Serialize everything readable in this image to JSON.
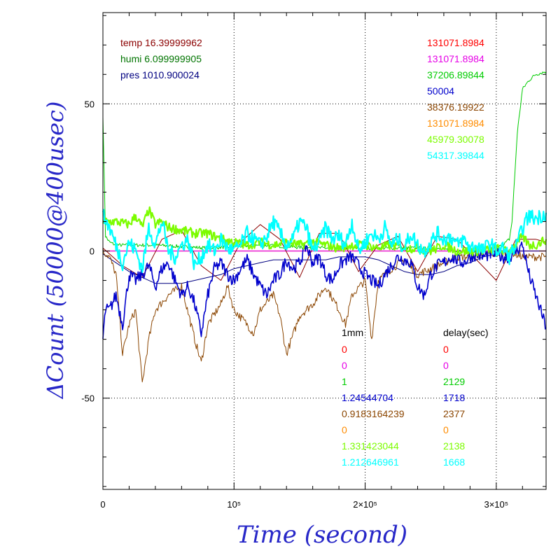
{
  "chart_data": {
    "type": "line",
    "xlabel": "Time (second)",
    "ylabel": "ΔCount (50000@400usec)",
    "xlim": [
      0,
      338000
    ],
    "ylim": [
      -81,
      81
    ],
    "x_ticks": [
      {
        "value": 0,
        "label": "0"
      },
      {
        "value": 100000,
        "label": "10⁵"
      },
      {
        "value": 200000,
        "label": "2×10⁵"
      },
      {
        "value": 300000,
        "label": "3×10⁵"
      }
    ],
    "y_ticks": [
      {
        "value": -50,
        "label": "-50"
      },
      {
        "value": 0,
        "label": "0"
      },
      {
        "value": 50,
        "label": "50"
      }
    ],
    "grid": true,
    "env_legend": [
      {
        "label": "temp 16.39999962",
        "color": "#8b0000"
      },
      {
        "label": "humi 6.099999905",
        "color": "#007400"
      },
      {
        "label": "pres 1010.900024",
        "color": "#000080"
      }
    ],
    "mean_legend": [
      {
        "label": "131071.8984",
        "color": "#ff0000"
      },
      {
        "label": "131071.8984",
        "color": "#e600e6"
      },
      {
        "label": "37206.89844",
        "color": "#00cc00"
      },
      {
        "label": "50004",
        "color": "#0000cc"
      },
      {
        "label": "38376.19922",
        "color": "#8b4500"
      },
      {
        "label": "131071.8984",
        "color": "#ff8c00"
      },
      {
        "label": "45979.30078",
        "color": "#7cfc00"
      },
      {
        "label": "54317.39844",
        "color": "#00ffff"
      }
    ],
    "table_headers": [
      "1mm",
      "delay(sec)"
    ],
    "table_rows": [
      {
        "c1": "0",
        "c2": "0",
        "color": "#ff0000"
      },
      {
        "c1": "0",
        "c2": "0",
        "color": "#e600e6"
      },
      {
        "c1": "1",
        "c2": "2129",
        "color": "#00cc00"
      },
      {
        "c1": "1.24544704",
        "c2": "1718",
        "color": "#0000cc"
      },
      {
        "c1": "0.9183164239",
        "c2": "2377",
        "color": "#8b4500"
      },
      {
        "c1": "0",
        "c2": "0",
        "color": "#ff8c00"
      },
      {
        "c1": "1.331423044",
        "c2": "2138",
        "color": "#7cfc00"
      },
      {
        "c1": "1.212646961",
        "c2": "1668",
        "color": "#00ffff"
      }
    ],
    "series": [
      {
        "color": "#ff8c00",
        "width": 1.2,
        "noise": 0,
        "x": [
          0,
          338000
        ],
        "y": [
          0,
          0
        ]
      },
      {
        "color": "#e600e6",
        "width": 1.2,
        "noise": 0,
        "x": [
          0,
          338000
        ],
        "y": [
          0,
          0
        ]
      },
      {
        "color": "#00cc00",
        "width": 1.0,
        "noise": 0.6,
        "x": [
          0,
          2000,
          5000,
          10000,
          40000,
          80000,
          120000,
          160000,
          200000,
          240000,
          280000,
          300000,
          305000,
          310000,
          312000,
          316000,
          320000,
          325000,
          330000,
          338000
        ],
        "y": [
          46,
          5,
          3,
          2,
          2,
          1,
          2,
          1,
          1,
          1,
          0,
          1,
          2,
          4,
          10,
          40,
          55,
          58,
          60,
          61
        ]
      },
      {
        "color": "#8b0000",
        "width": 1.0,
        "noise": 0,
        "x": [
          0,
          15000,
          30000,
          45000,
          60000,
          75000,
          90000,
          105000,
          120000,
          135000,
          150000,
          165000,
          180000,
          195000,
          210000,
          225000,
          240000,
          255000,
          270000,
          285000,
          300000,
          315000,
          330000,
          338000
        ],
        "y": [
          1,
          -5,
          -9,
          4,
          7,
          -5,
          -10,
          3,
          9,
          4,
          -9,
          6,
          6,
          -7,
          2,
          5,
          -7,
          5,
          4,
          -3,
          -10,
          4,
          4,
          3
        ]
      },
      {
        "color": "#000080",
        "width": 1.0,
        "noise": 0,
        "x": [
          0,
          10000,
          20000,
          30000,
          40000,
          50000,
          60000,
          70000,
          80000,
          90000,
          100000,
          110000,
          120000,
          130000,
          140000,
          150000,
          160000,
          170000,
          180000,
          190000,
          200000,
          210000,
          220000,
          230000,
          240000,
          250000,
          260000,
          270000,
          280000,
          290000,
          300000,
          310000,
          320000,
          330000,
          338000
        ],
        "y": [
          -1,
          -4,
          -7,
          -9,
          -11,
          -11,
          -11,
          -10,
          -9,
          -8,
          -6,
          -5,
          -4,
          -3,
          -3,
          -3,
          -3,
          -3,
          -2,
          -2,
          -2,
          -3,
          -5,
          -7,
          -8,
          -8,
          -7,
          -5,
          -4,
          -2,
          -1,
          0,
          0,
          0,
          0
        ]
      },
      {
        "color": "#8b4500",
        "width": 1.0,
        "noise": 1.4,
        "x": [
          0,
          5000,
          10000,
          15000,
          20000,
          25000,
          30000,
          35000,
          40000,
          50000,
          60000,
          70000,
          75000,
          80000,
          90000,
          95000,
          100000,
          110000,
          115000,
          120000,
          130000,
          135000,
          140000,
          150000,
          160000,
          170000,
          180000,
          185000,
          190000,
          200000,
          205000,
          210000,
          220000,
          230000,
          240000,
          250000,
          260000,
          270000,
          280000,
          290000,
          300000,
          310000,
          320000,
          330000,
          338000
        ],
        "y": [
          0,
          -2,
          -8,
          -35,
          -25,
          -20,
          -45,
          -30,
          -20,
          -15,
          -12,
          -30,
          -38,
          -25,
          -18,
          -12,
          -20,
          -25,
          -28,
          -20,
          -15,
          -22,
          -35,
          -22,
          -18,
          -12,
          -20,
          -25,
          -15,
          -10,
          -30,
          -10,
          -6,
          -3,
          -8,
          -6,
          -4,
          -2,
          -2,
          -1,
          -1,
          0,
          -2,
          -2,
          -2
        ]
      },
      {
        "color": "#0000cc",
        "width": 1.6,
        "noise": 2.2,
        "x": [
          0,
          2000,
          5000,
          10000,
          15000,
          20000,
          25000,
          30000,
          35000,
          40000,
          45000,
          50000,
          55000,
          60000,
          65000,
          70000,
          75000,
          80000,
          85000,
          90000,
          95000,
          100000,
          105000,
          110000,
          115000,
          120000,
          125000,
          130000,
          135000,
          140000,
          145000,
          150000,
          155000,
          160000,
          165000,
          170000,
          175000,
          180000,
          185000,
          190000,
          195000,
          200000,
          205000,
          210000,
          215000,
          220000,
          225000,
          230000,
          235000,
          240000,
          245000,
          250000,
          255000,
          260000,
          265000,
          270000,
          275000,
          280000,
          285000,
          290000,
          295000,
          300000,
          305000,
          310000,
          315000,
          320000,
          325000,
          330000,
          338000
        ],
        "y": [
          -30,
          -20,
          -20,
          -15,
          -25,
          -8,
          -10,
          -8,
          -5,
          -12,
          -6,
          -4,
          -10,
          -15,
          -12,
          -18,
          -28,
          -15,
          -6,
          -4,
          -8,
          -10,
          -6,
          -3,
          -8,
          -12,
          -15,
          -10,
          -8,
          -3,
          -6,
          -4,
          2,
          -4,
          -2,
          -8,
          -10,
          -5,
          -3,
          -2,
          -5,
          -8,
          -10,
          -12,
          -8,
          -5,
          -2,
          -3,
          -4,
          -12,
          -15,
          -8,
          -5,
          -4,
          -2,
          -3,
          -4,
          -2,
          -1,
          -2,
          -1,
          -1,
          -2,
          -2,
          0,
          2,
          -8,
          -15,
          -26
        ]
      },
      {
        "color": "#7cfc00",
        "width": 2.2,
        "noise": 1.6,
        "x": [
          0,
          10000,
          20000,
          25000,
          30000,
          35000,
          40000,
          45000,
          50000,
          60000,
          70000,
          80000,
          90000,
          100000,
          110000,
          120000,
          130000,
          140000,
          150000,
          160000,
          170000,
          180000,
          190000,
          200000,
          210000,
          220000,
          230000,
          240000,
          250000,
          260000,
          270000,
          280000,
          290000,
          300000,
          305000,
          310000,
          315000,
          320000,
          325000,
          330000,
          338000
        ],
        "y": [
          10,
          10,
          9,
          12,
          8,
          14,
          9,
          10,
          8,
          7,
          6,
          6,
          4,
          3,
          2,
          3,
          2,
          3,
          2,
          3,
          2,
          1,
          2,
          2,
          1,
          2,
          1,
          1,
          0,
          2,
          0,
          0,
          0,
          1,
          0,
          0,
          2,
          5,
          2,
          2,
          4
        ]
      },
      {
        "color": "#00ffff",
        "width": 2.2,
        "noise": 2.6,
        "x": [
          0,
          5000,
          10000,
          15000,
          20000,
          25000,
          30000,
          35000,
          40000,
          45000,
          50000,
          55000,
          60000,
          65000,
          70000,
          75000,
          80000,
          85000,
          90000,
          95000,
          100000,
          105000,
          110000,
          115000,
          120000,
          125000,
          130000,
          135000,
          140000,
          145000,
          150000,
          155000,
          160000,
          165000,
          170000,
          175000,
          180000,
          185000,
          190000,
          195000,
          200000,
          205000,
          210000,
          215000,
          220000,
          225000,
          230000,
          235000,
          240000,
          245000,
          250000,
          255000,
          260000,
          265000,
          270000,
          275000,
          280000,
          285000,
          290000,
          295000,
          300000,
          305000,
          310000,
          312000,
          316000,
          320000,
          325000,
          330000,
          338000
        ],
        "y": [
          12,
          8,
          2,
          -4,
          3,
          0,
          -6,
          8,
          2,
          10,
          0,
          -2,
          2,
          4,
          -5,
          -2,
          2,
          0,
          4,
          1,
          0,
          2,
          6,
          4,
          2,
          5,
          10,
          6,
          2,
          4,
          10,
          8,
          0,
          3,
          8,
          4,
          5,
          2,
          10,
          0,
          3,
          6,
          4,
          8,
          2,
          4,
          1,
          6,
          2,
          0,
          3,
          6,
          4,
          5,
          2,
          4,
          1,
          2,
          0,
          3,
          0,
          1,
          -2,
          0,
          2,
          8,
          12,
          11,
          13
        ]
      }
    ]
  }
}
